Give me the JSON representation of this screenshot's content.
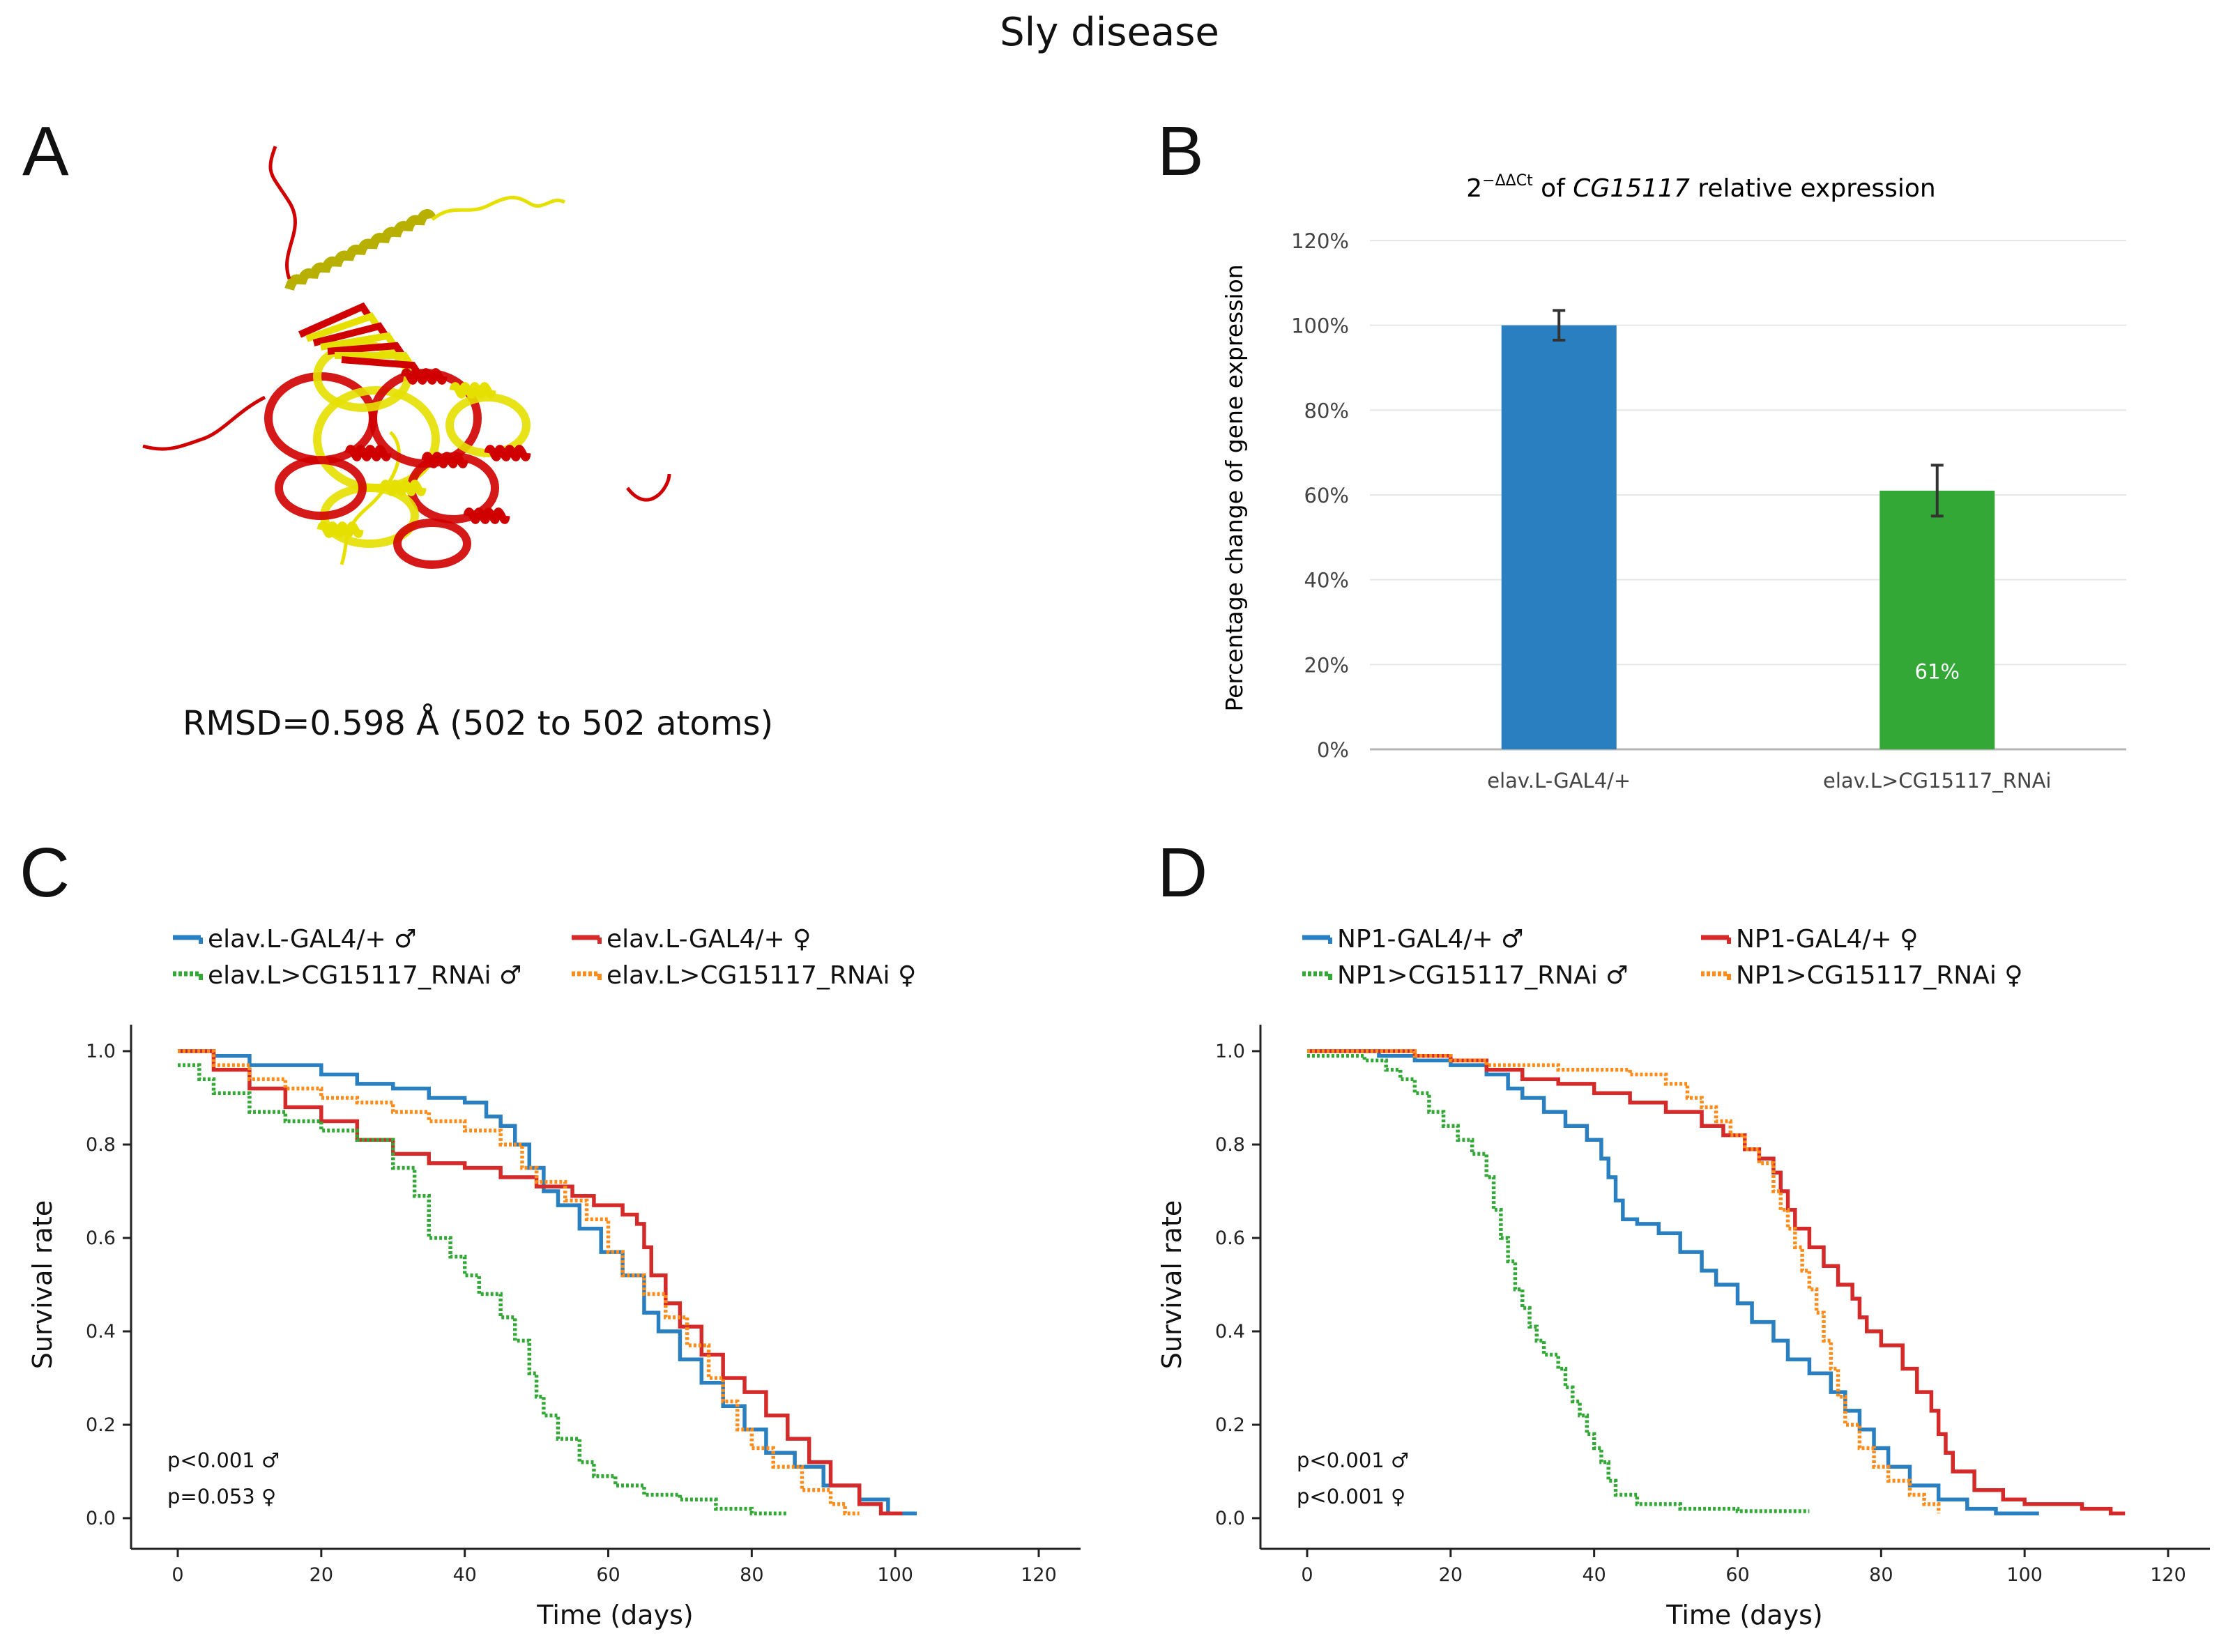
{
  "figure": {
    "title": "Sly disease"
  },
  "panels": {
    "A": {
      "letter": "A",
      "rmsd_text": "RMSD=0.598 Å (502 to 502 atoms)",
      "structure_colors": {
        "model_1": "#d00000",
        "model_2": "#e6e000"
      }
    },
    "B": {
      "letter": "B"
    },
    "C": {
      "letter": "C"
    },
    "D": {
      "letter": "D"
    }
  },
  "chart_data": [
    {
      "panel": "B",
      "type": "bar",
      "title_prefix": "2",
      "title_superscript": "−ΔΔCt",
      "title_mid": " of ",
      "title_gene": "CG15117",
      "title_suffix": " relative expression",
      "ylabel": "Percentage change of gene expression",
      "xlabel": "",
      "categories": [
        "elav.L-GAL4/+",
        "elav.L>CG15117_RNAi"
      ],
      "values": [
        100,
        61
      ],
      "errors": [
        3.5,
        6
      ],
      "colors": [
        "#2a7fc1",
        "#33a837"
      ],
      "data_labels": [
        "",
        "61%"
      ],
      "ylim": [
        0,
        120
      ],
      "yticks": [
        "0%",
        "20%",
        "40%",
        "60%",
        "80%",
        "100%",
        "120%"
      ],
      "grid": true
    },
    {
      "panel": "C",
      "type": "line",
      "step": true,
      "xlabel": "Time (days)",
      "ylabel": "Survival rate",
      "xlim": [
        0,
        120
      ],
      "ylim": [
        0,
        1
      ],
      "xticks": [
        "0",
        "20",
        "40",
        "60",
        "80",
        "100",
        "120"
      ],
      "yticks": [
        "0.0",
        "0.2",
        "0.4",
        "0.6",
        "0.8",
        "1.0"
      ],
      "pvalues": [
        "p<0.001 ♂",
        "p=0.053 ♀"
      ],
      "series": [
        {
          "name": "elav.L-GAL4/+ ♂",
          "color": "#2a7fc1",
          "dashed": false,
          "points": [
            [
              0,
              1
            ],
            [
              5,
              0.99
            ],
            [
              10,
              0.97
            ],
            [
              15,
              0.97
            ],
            [
              20,
              0.95
            ],
            [
              25,
              0.93
            ],
            [
              30,
              0.92
            ],
            [
              35,
              0.9
            ],
            [
              40,
              0.89
            ],
            [
              43,
              0.86
            ],
            [
              45,
              0.84
            ],
            [
              47,
              0.8
            ],
            [
              49,
              0.75
            ],
            [
              51,
              0.7
            ],
            [
              53,
              0.67
            ],
            [
              56,
              0.62
            ],
            [
              59,
              0.57
            ],
            [
              62,
              0.52
            ],
            [
              65,
              0.44
            ],
            [
              67,
              0.4
            ],
            [
              70,
              0.34
            ],
            [
              73,
              0.29
            ],
            [
              76,
              0.24
            ],
            [
              79,
              0.19
            ],
            [
              82,
              0.14
            ],
            [
              86,
              0.11
            ],
            [
              90,
              0.07
            ],
            [
              95,
              0.04
            ],
            [
              99,
              0.01
            ],
            [
              103,
              0.01
            ]
          ]
        },
        {
          "name": "elav.L-GAL4/+ ♀",
          "color": "#d52a2a",
          "dashed": false,
          "points": [
            [
              0,
              1
            ],
            [
              5,
              0.96
            ],
            [
              10,
              0.92
            ],
            [
              15,
              0.88
            ],
            [
              20,
              0.85
            ],
            [
              25,
              0.81
            ],
            [
              30,
              0.78
            ],
            [
              35,
              0.76
            ],
            [
              40,
              0.75
            ],
            [
              45,
              0.73
            ],
            [
              50,
              0.71
            ],
            [
              55,
              0.69
            ],
            [
              58,
              0.67
            ],
            [
              62,
              0.65
            ],
            [
              64,
              0.63
            ],
            [
              65,
              0.58
            ],
            [
              66,
              0.52
            ],
            [
              68,
              0.46
            ],
            [
              70,
              0.41
            ],
            [
              73,
              0.35
            ],
            [
              76,
              0.3
            ],
            [
              79,
              0.27
            ],
            [
              82,
              0.22
            ],
            [
              85,
              0.17
            ],
            [
              88,
              0.12
            ],
            [
              91,
              0.07
            ],
            [
              95,
              0.03
            ],
            [
              98,
              0.01
            ],
            [
              101,
              0.01
            ]
          ]
        },
        {
          "name": "elav.L>CG15117_RNAi ♂",
          "color": "#33a837",
          "dashed": true,
          "points": [
            [
              0,
              0.97
            ],
            [
              3,
              0.94
            ],
            [
              5,
              0.91
            ],
            [
              10,
              0.87
            ],
            [
              15,
              0.85
            ],
            [
              20,
              0.83
            ],
            [
              25,
              0.81
            ],
            [
              30,
              0.75
            ],
            [
              33,
              0.69
            ],
            [
              35,
              0.6
            ],
            [
              38,
              0.56
            ],
            [
              40,
              0.52
            ],
            [
              42,
              0.48
            ],
            [
              45,
              0.43
            ],
            [
              47,
              0.38
            ],
            [
              49,
              0.31
            ],
            [
              50,
              0.26
            ],
            [
              51,
              0.22
            ],
            [
              53,
              0.17
            ],
            [
              56,
              0.12
            ],
            [
              58,
              0.09
            ],
            [
              61,
              0.07
            ],
            [
              65,
              0.05
            ],
            [
              70,
              0.04
            ],
            [
              75,
              0.02
            ],
            [
              80,
              0.01
            ],
            [
              85,
              0.01
            ]
          ]
        },
        {
          "name": "elav.L>CG15117_RNAi ♀",
          "color": "#ff8c1a",
          "dashed": true,
          "points": [
            [
              0,
              1
            ],
            [
              5,
              0.97
            ],
            [
              10,
              0.94
            ],
            [
              15,
              0.92
            ],
            [
              20,
              0.9
            ],
            [
              25,
              0.89
            ],
            [
              30,
              0.87
            ],
            [
              35,
              0.85
            ],
            [
              40,
              0.83
            ],
            [
              45,
              0.8
            ],
            [
              48,
              0.75
            ],
            [
              50,
              0.72
            ],
            [
              54,
              0.68
            ],
            [
              57,
              0.64
            ],
            [
              60,
              0.57
            ],
            [
              62,
              0.52
            ],
            [
              65,
              0.48
            ],
            [
              68,
              0.43
            ],
            [
              71,
              0.37
            ],
            [
              74,
              0.3
            ],
            [
              76,
              0.25
            ],
            [
              78,
              0.19
            ],
            [
              80,
              0.15
            ],
            [
              83,
              0.11
            ],
            [
              87,
              0.06
            ],
            [
              91,
              0.03
            ],
            [
              93,
              0.01
            ],
            [
              95,
              0.01
            ]
          ]
        }
      ]
    },
    {
      "panel": "D",
      "type": "line",
      "step": true,
      "xlabel": "Time (days)",
      "ylabel": "Survival rate",
      "xlim": [
        0,
        120
      ],
      "ylim": [
        0,
        1
      ],
      "xticks": [
        "0",
        "20",
        "40",
        "60",
        "80",
        "100",
        "120"
      ],
      "yticks": [
        "0.0",
        "0.2",
        "0.4",
        "0.6",
        "0.8",
        "1.0"
      ],
      "pvalues": [
        "p<0.001 ♂",
        "p<0.001 ♀"
      ],
      "series": [
        {
          "name": "NP1-GAL4/+ ♂",
          "color": "#2a7fc1",
          "dashed": false,
          "points": [
            [
              0,
              1
            ],
            [
              10,
              0.99
            ],
            [
              15,
              0.98
            ],
            [
              20,
              0.97
            ],
            [
              25,
              0.95
            ],
            [
              28,
              0.92
            ],
            [
              30,
              0.9
            ],
            [
              33,
              0.87
            ],
            [
              36,
              0.84
            ],
            [
              39,
              0.81
            ],
            [
              41,
              0.77
            ],
            [
              42,
              0.73
            ],
            [
              43,
              0.68
            ],
            [
              44,
              0.64
            ],
            [
              46,
              0.63
            ],
            [
              49,
              0.61
            ],
            [
              52,
              0.57
            ],
            [
              55,
              0.53
            ],
            [
              57,
              0.5
            ],
            [
              60,
              0.46
            ],
            [
              62,
              0.42
            ],
            [
              65,
              0.38
            ],
            [
              67,
              0.34
            ],
            [
              70,
              0.31
            ],
            [
              73,
              0.27
            ],
            [
              75,
              0.23
            ],
            [
              77,
              0.19
            ],
            [
              79,
              0.15
            ],
            [
              81,
              0.11
            ],
            [
              84,
              0.07
            ],
            [
              88,
              0.04
            ],
            [
              92,
              0.02
            ],
            [
              96,
              0.01
            ],
            [
              102,
              0.01
            ]
          ]
        },
        {
          "name": "NP1-GAL4/+ ♀",
          "color": "#d52a2a",
          "dashed": false,
          "points": [
            [
              0,
              1
            ],
            [
              15,
              0.99
            ],
            [
              20,
              0.98
            ],
            [
              25,
              0.96
            ],
            [
              30,
              0.94
            ],
            [
              35,
              0.93
            ],
            [
              40,
              0.91
            ],
            [
              45,
              0.89
            ],
            [
              50,
              0.87
            ],
            [
              55,
              0.84
            ],
            [
              58,
              0.82
            ],
            [
              61,
              0.79
            ],
            [
              63,
              0.77
            ],
            [
              65,
              0.74
            ],
            [
              66,
              0.7
            ],
            [
              67,
              0.66
            ],
            [
              68,
              0.62
            ],
            [
              70,
              0.58
            ],
            [
              72,
              0.54
            ],
            [
              74,
              0.5
            ],
            [
              76,
              0.47
            ],
            [
              77,
              0.43
            ],
            [
              78,
              0.4
            ],
            [
              80,
              0.37
            ],
            [
              83,
              0.32
            ],
            [
              85,
              0.27
            ],
            [
              87,
              0.23
            ],
            [
              88,
              0.18
            ],
            [
              89,
              0.14
            ],
            [
              90,
              0.1
            ],
            [
              93,
              0.06
            ],
            [
              97,
              0.04
            ],
            [
              100,
              0.03
            ],
            [
              108,
              0.02
            ],
            [
              112,
              0.01
            ],
            [
              114,
              0.01
            ]
          ]
        },
        {
          "name": "NP1>CG15117_RNAi ♂",
          "color": "#33a837",
          "dashed": true,
          "points": [
            [
              0,
              0.99
            ],
            [
              8,
              0.98
            ],
            [
              11,
              0.96
            ],
            [
              13,
              0.94
            ],
            [
              15,
              0.91
            ],
            [
              17,
              0.87
            ],
            [
              19,
              0.84
            ],
            [
              21,
              0.81
            ],
            [
              23,
              0.78
            ],
            [
              25,
              0.73
            ],
            [
              26,
              0.66
            ],
            [
              27,
              0.6
            ],
            [
              28,
              0.55
            ],
            [
              29,
              0.49
            ],
            [
              30,
              0.45
            ],
            [
              31,
              0.41
            ],
            [
              32,
              0.38
            ],
            [
              33,
              0.35
            ],
            [
              35,
              0.32
            ],
            [
              36,
              0.28
            ],
            [
              37,
              0.25
            ],
            [
              38,
              0.22
            ],
            [
              39,
              0.18
            ],
            [
              40,
              0.15
            ],
            [
              41,
              0.12
            ],
            [
              42,
              0.08
            ],
            [
              43,
              0.05
            ],
            [
              46,
              0.03
            ],
            [
              52,
              0.02
            ],
            [
              60,
              0.015
            ],
            [
              70,
              0.015
            ]
          ]
        },
        {
          "name": "NP1>CG15117_RNAi ♀",
          "color": "#ff8c1a",
          "dashed": true,
          "points": [
            [
              0,
              1
            ],
            [
              15,
              0.99
            ],
            [
              20,
              0.98
            ],
            [
              25,
              0.97
            ],
            [
              30,
              0.97
            ],
            [
              35,
              0.96
            ],
            [
              40,
              0.96
            ],
            [
              45,
              0.95
            ],
            [
              50,
              0.93
            ],
            [
              53,
              0.9
            ],
            [
              55,
              0.88
            ],
            [
              57,
              0.85
            ],
            [
              59,
              0.82
            ],
            [
              61,
              0.79
            ],
            [
              63,
              0.76
            ],
            [
              65,
              0.7
            ],
            [
              66,
              0.66
            ],
            [
              67,
              0.62
            ],
            [
              68,
              0.58
            ],
            [
              69,
              0.53
            ],
            [
              70,
              0.49
            ],
            [
              71,
              0.44
            ],
            [
              72,
              0.38
            ],
            [
              73,
              0.32
            ],
            [
              74,
              0.26
            ],
            [
              75,
              0.2
            ],
            [
              77,
              0.15
            ],
            [
              79,
              0.11
            ],
            [
              81,
              0.08
            ],
            [
              84,
              0.05
            ],
            [
              86,
              0.03
            ],
            [
              88,
              0.01
            ]
          ]
        }
      ]
    }
  ]
}
